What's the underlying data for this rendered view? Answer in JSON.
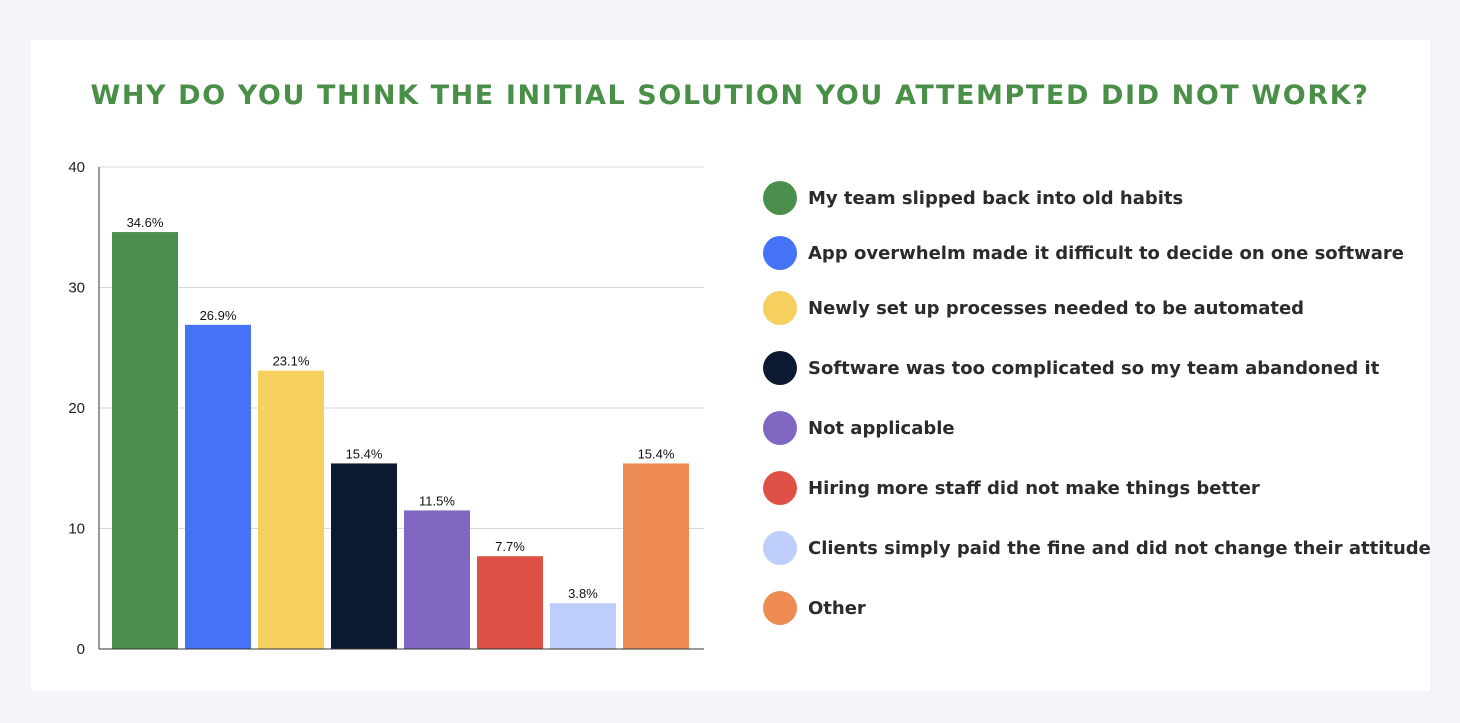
{
  "title": "WHY DO YOU THINK THE INITIAL SOLUTION YOU ATTEMPTED DID NOT WORK?",
  "colors": {
    "title": "#4a8f48",
    "page_background": "#f3f5f8",
    "card_background": "#ffffff",
    "gridline": "#d9d9d9",
    "axis": "#333333"
  },
  "chart_data": {
    "type": "bar",
    "title": "WHY DO YOU THINK THE INITIAL SOLUTION YOU ATTEMPTED DID NOT WORK?",
    "categories": [
      "My team slipped back into old habits",
      "App overwhelm made it difficult to decide on one software",
      "Newly set up processes needed to be automated",
      "Software was too complicated so my team abandoned it",
      "Not applicable",
      "Hiring more staff did not make things better",
      "Clients simply paid the fine and did not change their attitude",
      "Other"
    ],
    "values": [
      34.6,
      26.9,
      23.1,
      15.4,
      11.5,
      7.7,
      3.8,
      15.4
    ],
    "data_labels": [
      "34.6%",
      "26.9%",
      "23.1%",
      "15.4%",
      "11.5%",
      "7.7%",
      "3.8%",
      "15.4%"
    ],
    "colors": [
      "#4a8f4b",
      "#4573f5",
      "#f5d05e",
      "#0b1a30",
      "#8067c1",
      "#df5147",
      "#bfcdfa",
      "#ee8b54"
    ],
    "ylim": [
      0,
      40
    ],
    "yticks": [
      0,
      10,
      20,
      30,
      40
    ],
    "ytick_labels": [
      "0",
      "10",
      "20",
      "30",
      "40"
    ],
    "xlabel": "",
    "ylabel": "",
    "grid": true,
    "legend_position": "right"
  }
}
